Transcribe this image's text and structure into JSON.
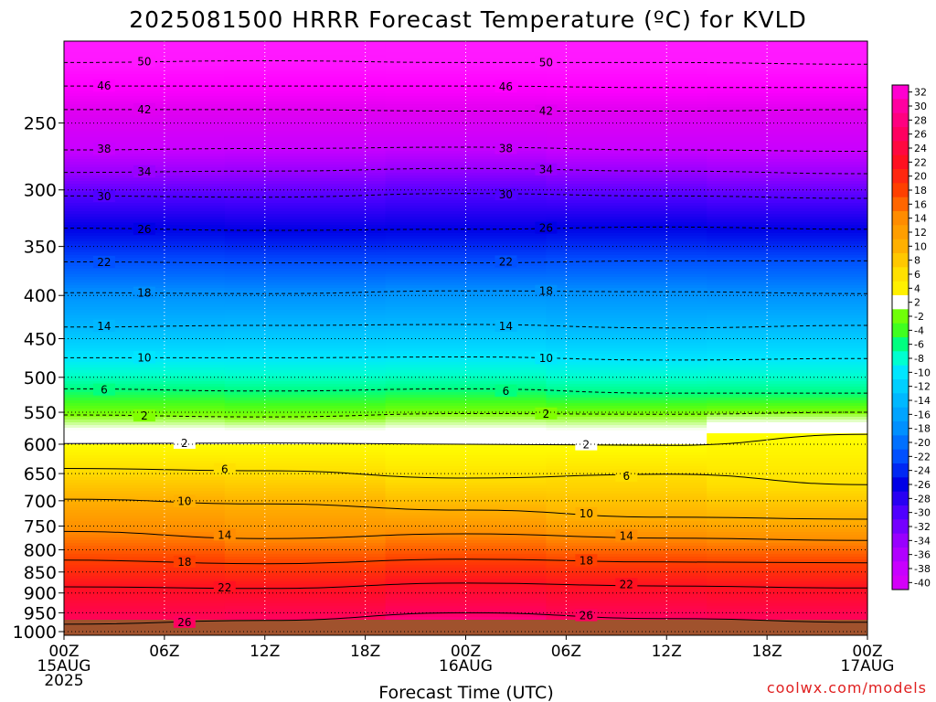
{
  "title": "2025081500 HRRR Forecast Temperature (ºC) for KVLD",
  "xlabel": "Forecast Time (UTC)",
  "credit": "coolwx.com/models",
  "x_ticks": [
    {
      "hour": 0,
      "lines": [
        "00Z",
        "15AUG",
        "2025"
      ]
    },
    {
      "hour": 6,
      "lines": [
        "06Z"
      ]
    },
    {
      "hour": 12,
      "lines": [
        "12Z"
      ]
    },
    {
      "hour": 18,
      "lines": [
        "18Z"
      ]
    },
    {
      "hour": 24,
      "lines": [
        "00Z",
        "16AUG"
      ]
    },
    {
      "hour": 30,
      "lines": [
        "06Z"
      ]
    },
    {
      "hour": 36,
      "lines": [
        "12Z"
      ]
    },
    {
      "hour": 42,
      "lines": [
        "18Z"
      ]
    },
    {
      "hour": 48,
      "lines": [
        "00Z",
        "17AUG"
      ]
    }
  ],
  "y_ticks": [
    "250",
    "300",
    "350",
    "400",
    "450",
    "500",
    "550",
    "600",
    "650",
    "700",
    "750",
    "800",
    "850",
    "900",
    "950",
    "1000"
  ],
  "colorbar_labels": [
    "32",
    "30",
    "28",
    "26",
    "24",
    "22",
    "20",
    "18",
    "16",
    "14",
    "12",
    "10",
    "8",
    "6",
    "4",
    "2",
    "-2",
    "-4",
    "-6",
    "-8",
    "-10",
    "-12",
    "-14",
    "-16",
    "-18",
    "-20",
    "-22",
    "-24",
    "-26",
    "-28",
    "-30",
    "-32",
    "-34",
    "-36",
    "-38",
    "-40"
  ],
  "chart_data": {
    "type": "heatmap",
    "title": "2025081500 HRRR Forecast Temperature (ºC) for KVLD",
    "xlabel": "Forecast Time (UTC)",
    "ylabel": "",
    "x_range_hours": [
      0,
      48
    ],
    "y_axis": "pressure (hPa), log scale, inverted",
    "y_range": [
      1010,
      200
    ],
    "ground_level_hPa": 1000,
    "colorbar_range": [
      -40,
      32
    ],
    "colorbar_ticks": [
      32,
      30,
      28,
      26,
      24,
      22,
      20,
      18,
      16,
      14,
      12,
      10,
      8,
      6,
      4,
      2,
      -2,
      -4,
      -6,
      -8,
      -10,
      -12,
      -14,
      -16,
      -18,
      -20,
      -22,
      -24,
      -26,
      -28,
      -30,
      -32,
      -34,
      -36,
      -38,
      -40
    ],
    "grid": true,
    "contours": [
      {
        "value": -50,
        "p": [
          212,
          211,
          212,
          212,
          213
        ]
      },
      {
        "value": -46,
        "p": [
          226,
          226,
          226,
          227,
          227
        ]
      },
      {
        "value": -42,
        "p": [
          241,
          241,
          242,
          242,
          241
        ]
      },
      {
        "value": -38,
        "p": [
          269,
          268,
          267,
          269,
          270
        ]
      },
      {
        "value": -34,
        "p": [
          286,
          285,
          283,
          285,
          287
        ]
      },
      {
        "value": -30,
        "p": [
          305,
          306,
          303,
          305,
          307
        ]
      },
      {
        "value": -26,
        "p": [
          333,
          335,
          334,
          332,
          334
        ]
      },
      {
        "value": -22,
        "p": [
          365,
          366,
          366,
          364,
          364
        ]
      },
      {
        "value": -18,
        "p": [
          397,
          398,
          395,
          396,
          398
        ]
      },
      {
        "value": -14,
        "p": [
          436,
          434,
          433,
          437,
          434
        ]
      },
      {
        "value": -10,
        "p": [
          474,
          474,
          473,
          477,
          475
        ]
      },
      {
        "value": -6,
        "p": [
          516,
          519,
          516,
          522,
          522
        ]
      },
      {
        "value": -2,
        "p": [
          554,
          557,
          552,
          553,
          550
        ]
      },
      {
        "value": 2,
        "p": [
          599,
          598,
          600,
          602,
          584
        ]
      },
      {
        "value": 6,
        "p": [
          641,
          645,
          658,
          651,
          670
        ]
      },
      {
        "value": 10,
        "p": [
          697,
          706,
          718,
          732,
          736
        ]
      },
      {
        "value": 14,
        "p": [
          761,
          776,
          766,
          775,
          780
        ]
      },
      {
        "value": 18,
        "p": [
          823,
          831,
          821,
          827,
          829
        ]
      },
      {
        "value": 22,
        "p": [
          885,
          889,
          876,
          883,
          888
        ]
      },
      {
        "value": 26,
        "p": [
          980,
          970,
          950,
          965,
          975
        ]
      }
    ],
    "surface_temperature_C": [
      29,
      28,
      32,
      30,
      30
    ]
  }
}
